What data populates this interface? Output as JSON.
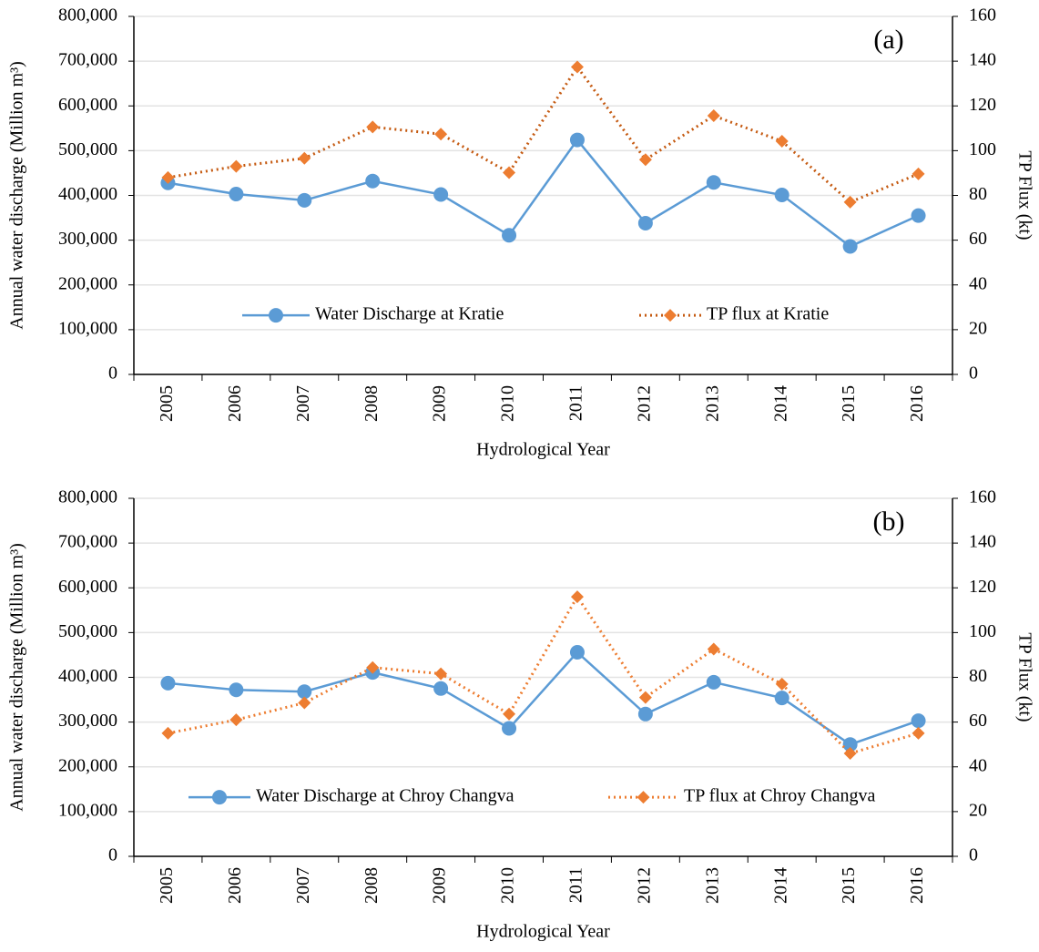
{
  "chart_data": [
    {
      "type": "line",
      "annotation": "(a)",
      "x_label": "Hydrological Year",
      "y_label": "Annual water discharge (Million m³)",
      "y2_label": "TP Flux (kt)",
      "categories": [
        "2005",
        "2006",
        "2007",
        "2008",
        "2009",
        "2010",
        "2011",
        "2012",
        "2013",
        "2014",
        "2015",
        "2016"
      ],
      "series": [
        {
          "name": "Water Discharge at Kratie",
          "color": "#5b9bd5",
          "marker": "circle",
          "line_style": "solid",
          "values": [
            428000,
            403000,
            389000,
            432000,
            402000,
            311000,
            524000,
            338000,
            429000,
            401000,
            286000,
            355000
          ]
        },
        {
          "name": "TP flux at Kratie",
          "color": "#ed7d31",
          "line_color": "#c55a11",
          "marker": "diamond",
          "line_style": "dotted",
          "axis": "y2",
          "values": [
            88,
            93,
            96.6,
            110.6,
            107.4,
            90.2,
            137.4,
            96,
            115.6,
            104.2,
            77,
            89.6
          ]
        }
      ],
      "ylim": [
        0,
        800000
      ],
      "yticks": [
        0,
        {
          "value": 100000,
          "label": "100,000"
        },
        {
          "value": 200000,
          "label": "200,000"
        },
        {
          "value": 300000,
          "label": "300,000"
        },
        {
          "value": 400000,
          "label": "400,000"
        },
        {
          "value": 500000,
          "label": "500,000"
        },
        {
          "value": 600000,
          "label": "600,000"
        },
        {
          "value": 700000,
          "label": "700,000"
        },
        {
          "value": 800000,
          "label": "800,000"
        }
      ],
      "y2lim": [
        0,
        160
      ],
      "y2ticks": [
        0,
        20,
        40,
        60,
        80,
        100,
        120,
        140,
        160
      ],
      "grid": true,
      "legend": "lower center"
    },
    {
      "type": "line",
      "annotation": "(b)",
      "x_label": "Hydrological Year",
      "y_label": "Annual water discharge (Million m³)",
      "y2_label": "TP Flux (kt)",
      "categories": [
        "2005",
        "2006",
        "2007",
        "2008",
        "2009",
        "2010",
        "2011",
        "2012",
        "2013",
        "2014",
        "2015",
        "2016"
      ],
      "series": [
        {
          "name": "Water Discharge at Chroy Changva",
          "color": "#5b9bd5",
          "marker": "circle",
          "line_style": "solid",
          "values": [
            387000,
            372000,
            368000,
            411000,
            375000,
            286000,
            456000,
            318000,
            389000,
            354000,
            250000,
            303000
          ]
        },
        {
          "name": "TP flux at Chroy Changva",
          "color": "#ed7d31",
          "line_color": "#ed7d31",
          "marker": "diamond",
          "line_style": "dotted",
          "axis": "y2",
          "values": [
            55,
            61,
            68.6,
            84.4,
            81.6,
            63.6,
            116,
            71,
            92.6,
            77,
            46,
            55
          ]
        }
      ],
      "ylim": [
        0,
        800000
      ],
      "yticks": [
        0,
        {
          "value": 100000,
          "label": "100,000"
        },
        {
          "value": 200000,
          "label": "200,000"
        },
        {
          "value": 300000,
          "label": "300,000"
        },
        {
          "value": 400000,
          "label": "400,000"
        },
        {
          "value": 500000,
          "label": "500,000"
        },
        {
          "value": 600000,
          "label": "600,000"
        },
        {
          "value": 700000,
          "label": "700,000"
        },
        {
          "value": 800000,
          "label": "800,000"
        }
      ],
      "y2lim": [
        0,
        160
      ],
      "y2ticks": [
        0,
        20,
        40,
        60,
        80,
        100,
        120,
        140,
        160
      ],
      "grid": true,
      "legend": "lower center"
    }
  ]
}
